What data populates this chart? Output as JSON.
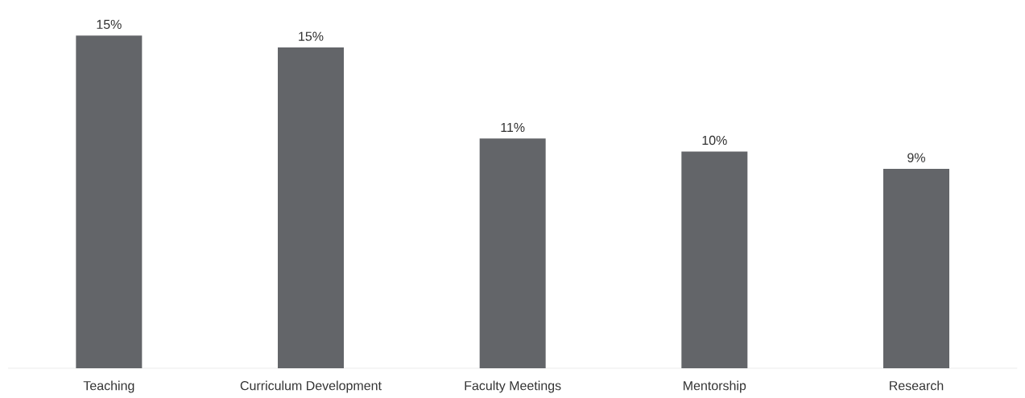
{
  "chart_data": {
    "type": "bar",
    "categories": [
      "Teaching",
      "Curriculum Development",
      "Faculty Meetings",
      "Mentorship",
      "Research"
    ],
    "values": [
      15.35,
      14.8,
      10.6,
      10.0,
      9.2
    ],
    "value_labels": [
      "15%",
      "15%",
      "11%",
      "10%",
      "9%"
    ],
    "color": "#636569"
  }
}
